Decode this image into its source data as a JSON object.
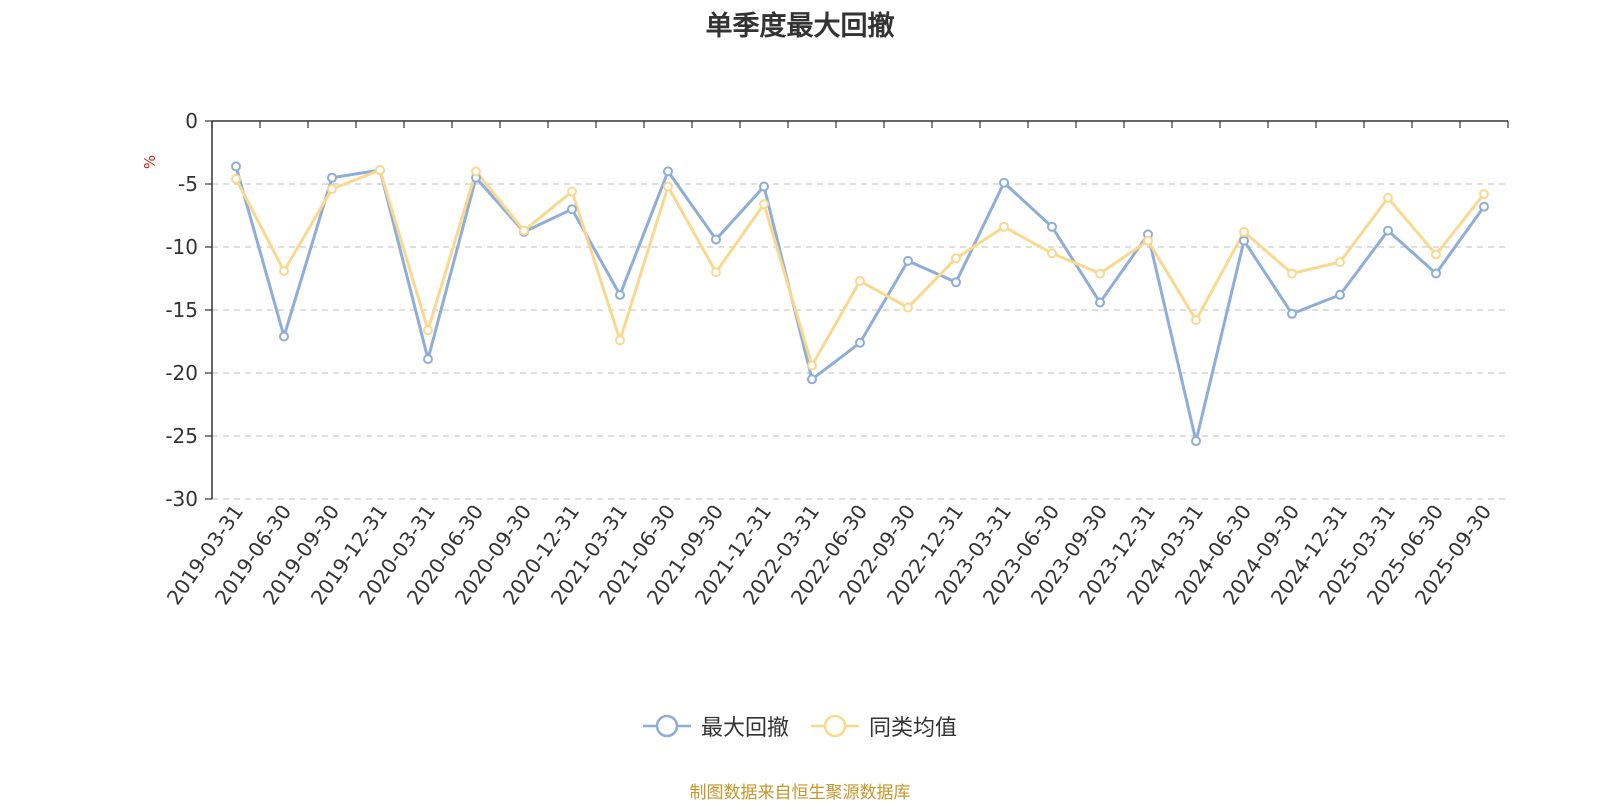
{
  "title": "单季度最大回撤",
  "source": "制图数据来自恒生聚源数据库",
  "colors": {
    "accent": "#e8a020"
  },
  "chart_data": {
    "type": "line",
    "title": "单季度最大回撤",
    "ylabel": "%",
    "xlabel": "",
    "ylim": [
      -30,
      0
    ],
    "yticks": [
      0,
      -5,
      -10,
      -15,
      -20,
      -25,
      -30
    ],
    "grid": true,
    "legend_position": "bottom-center",
    "categories": [
      "2019-03-31",
      "2019-06-30",
      "2019-09-30",
      "2019-12-31",
      "2020-03-31",
      "2020-06-30",
      "2020-09-30",
      "2020-12-31",
      "2021-03-31",
      "2021-06-30",
      "2021-09-30",
      "2021-12-31",
      "2022-03-31",
      "2022-06-30",
      "2022-09-30",
      "2022-12-31",
      "2023-03-31",
      "2023-06-30",
      "2023-09-30",
      "2023-12-31",
      "2024-03-31",
      "2024-06-30",
      "2024-09-30",
      "2024-12-31",
      "2025-03-31",
      "2025-06-30",
      "2025-09-30"
    ],
    "series": [
      {
        "name": "最大回撤",
        "color": "#8eadd9",
        "values": [
          -3.6,
          -17.1,
          -4.5,
          -3.9,
          -18.9,
          -4.5,
          -8.8,
          -7.0,
          -13.8,
          -4.0,
          -9.4,
          -5.2,
          -20.5,
          -17.6,
          -11.1,
          -12.8,
          -4.9,
          -8.4,
          -14.4,
          -9.0,
          -25.4,
          -9.5,
          -15.3,
          -13.8,
          -8.7,
          -12.1,
          -6.8
        ]
      },
      {
        "name": "同类均值",
        "color": "#fad98f",
        "values": [
          -4.6,
          -11.9,
          -5.4,
          -3.9,
          -16.6,
          -4.0,
          -8.7,
          -5.6,
          -17.4,
          -5.2,
          -12.0,
          -6.6,
          -19.4,
          -12.7,
          -14.8,
          -10.9,
          -8.4,
          -10.5,
          -12.1,
          -9.5,
          -15.8,
          -8.8,
          -12.1,
          -11.2,
          -6.1,
          -10.6,
          -5.8
        ]
      }
    ]
  }
}
